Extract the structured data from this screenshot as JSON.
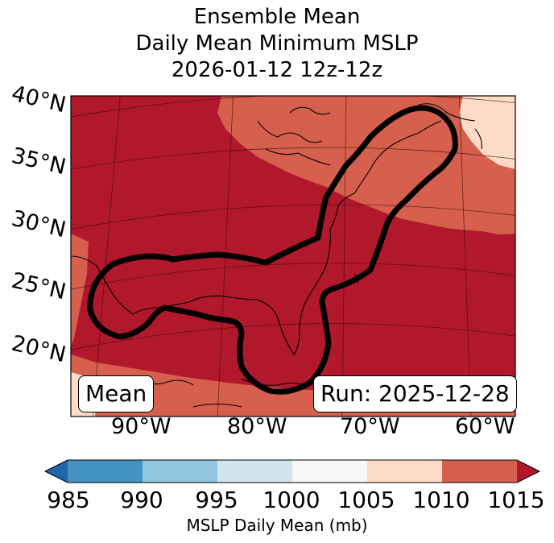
{
  "title": {
    "line1": "Ensemble Mean",
    "line2": "Daily Mean Minimum MSLP",
    "line3": "2026-01-12 12z-12z"
  },
  "map": {
    "lat_labels": [
      "40°N",
      "35°N",
      "30°N",
      "25°N",
      "20°N"
    ],
    "lon_labels": [
      "90°W",
      "80°W",
      "70°W",
      "60°W"
    ],
    "mean_badge": "Mean",
    "run_badge": "Run: 2025-12-28",
    "colors": {
      "high_1010_1015": "#b2182b",
      "mid_1005_1010": "#d6604d",
      "low_1000_1005": "#fddbc7",
      "contour": "#000000"
    }
  },
  "colorbar": {
    "ticks": [
      "985",
      "990",
      "995",
      "1000",
      "1005",
      "1010",
      "1015"
    ],
    "label": "MSLP Daily Mean (mb)",
    "colors": [
      "#2166ac",
      "#4393c3",
      "#92c5de",
      "#d1e5f0",
      "#f7f7f7",
      "#fddbc7",
      "#d6604d",
      "#b2182b"
    ]
  }
}
